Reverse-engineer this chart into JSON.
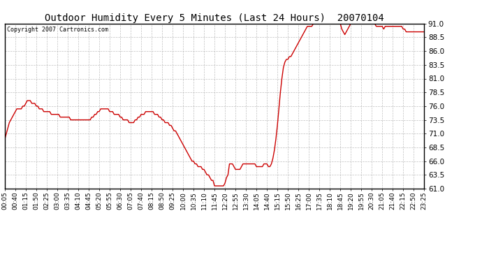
{
  "title": "Outdoor Humidity Every 5 Minutes (Last 24 Hours)  20070104",
  "copyright": "Copyright 2007 Cartronics.com",
  "ylim": [
    61.0,
    91.0
  ],
  "yticks": [
    61.0,
    63.5,
    66.0,
    68.5,
    71.0,
    73.5,
    76.0,
    78.5,
    81.0,
    83.5,
    86.0,
    88.5,
    91.0
  ],
  "line_color": "#cc0000",
  "bg_color": "#ffffff",
  "grid_color": "#b0b0b0",
  "x_labels": [
    "00:05",
    "00:40",
    "01:15",
    "01:50",
    "02:25",
    "03:00",
    "03:35",
    "04:10",
    "04:45",
    "05:20",
    "05:55",
    "06:30",
    "07:05",
    "07:40",
    "08:15",
    "08:50",
    "09:25",
    "10:00",
    "10:35",
    "11:10",
    "11:45",
    "12:20",
    "12:55",
    "13:30",
    "14:05",
    "14:40",
    "15:15",
    "15:50",
    "16:25",
    "17:00",
    "17:35",
    "18:10",
    "18:45",
    "19:20",
    "19:55",
    "20:30",
    "21:05",
    "21:40",
    "22:15",
    "22:50",
    "23:25"
  ],
  "humidity_data": [
    [
      "00:05",
      70.0
    ],
    [
      "00:10",
      71.0
    ],
    [
      "00:15",
      72.0
    ],
    [
      "00:20",
      73.0
    ],
    [
      "00:25",
      73.5
    ],
    [
      "00:30",
      74.0
    ],
    [
      "00:35",
      74.5
    ],
    [
      "00:40",
      75.0
    ],
    [
      "00:45",
      75.5
    ],
    [
      "00:50",
      75.5
    ],
    [
      "00:55",
      75.5
    ],
    [
      "01:00",
      75.5
    ],
    [
      "01:05",
      76.0
    ],
    [
      "01:10",
      76.0
    ],
    [
      "01:15",
      76.5
    ],
    [
      "01:20",
      77.0
    ],
    [
      "01:25",
      77.0
    ],
    [
      "01:30",
      77.0
    ],
    [
      "01:35",
      76.5
    ],
    [
      "01:40",
      76.5
    ],
    [
      "01:45",
      76.5
    ],
    [
      "01:50",
      76.0
    ],
    [
      "01:55",
      76.0
    ],
    [
      "02:00",
      75.5
    ],
    [
      "02:05",
      75.5
    ],
    [
      "02:10",
      75.5
    ],
    [
      "02:15",
      75.0
    ],
    [
      "02:20",
      75.0
    ],
    [
      "02:25",
      75.0
    ],
    [
      "02:30",
      75.0
    ],
    [
      "02:35",
      75.0
    ],
    [
      "02:40",
      74.5
    ],
    [
      "02:45",
      74.5
    ],
    [
      "02:50",
      74.5
    ],
    [
      "02:55",
      74.5
    ],
    [
      "03:00",
      74.5
    ],
    [
      "03:05",
      74.5
    ],
    [
      "03:10",
      74.0
    ],
    [
      "03:15",
      74.0
    ],
    [
      "03:20",
      74.0
    ],
    [
      "03:25",
      74.0
    ],
    [
      "03:30",
      74.0
    ],
    [
      "03:35",
      74.0
    ],
    [
      "03:40",
      74.0
    ],
    [
      "03:45",
      73.5
    ],
    [
      "03:50",
      73.5
    ],
    [
      "03:55",
      73.5
    ],
    [
      "04:00",
      73.5
    ],
    [
      "04:05",
      73.5
    ],
    [
      "04:10",
      73.5
    ],
    [
      "04:15",
      73.5
    ],
    [
      "04:20",
      73.5
    ],
    [
      "04:25",
      73.5
    ],
    [
      "04:30",
      73.5
    ],
    [
      "04:35",
      73.5
    ],
    [
      "04:40",
      73.5
    ],
    [
      "04:45",
      73.5
    ],
    [
      "04:50",
      73.5
    ],
    [
      "04:55",
      74.0
    ],
    [
      "05:00",
      74.0
    ],
    [
      "05:05",
      74.5
    ],
    [
      "05:10",
      74.5
    ],
    [
      "05:15",
      75.0
    ],
    [
      "05:20",
      75.0
    ],
    [
      "05:25",
      75.5
    ],
    [
      "05:30",
      75.5
    ],
    [
      "05:35",
      75.5
    ],
    [
      "05:40",
      75.5
    ],
    [
      "05:45",
      75.5
    ],
    [
      "05:50",
      75.5
    ],
    [
      "05:55",
      75.0
    ],
    [
      "06:00",
      75.0
    ],
    [
      "06:05",
      75.0
    ],
    [
      "06:10",
      74.5
    ],
    [
      "06:15",
      74.5
    ],
    [
      "06:20",
      74.5
    ],
    [
      "06:25",
      74.5
    ],
    [
      "06:30",
      74.0
    ],
    [
      "06:35",
      74.0
    ],
    [
      "06:40",
      73.5
    ],
    [
      "06:45",
      73.5
    ],
    [
      "06:50",
      73.5
    ],
    [
      "06:55",
      73.5
    ],
    [
      "07:00",
      73.0
    ],
    [
      "07:05",
      73.0
    ],
    [
      "07:10",
      73.0
    ],
    [
      "07:15",
      73.0
    ],
    [
      "07:20",
      73.5
    ],
    [
      "07:25",
      73.5
    ],
    [
      "07:30",
      74.0
    ],
    [
      "07:35",
      74.0
    ],
    [
      "07:40",
      74.5
    ],
    [
      "07:45",
      74.5
    ],
    [
      "07:50",
      74.5
    ],
    [
      "07:55",
      75.0
    ],
    [
      "08:00",
      75.0
    ],
    [
      "08:05",
      75.0
    ],
    [
      "08:10",
      75.0
    ],
    [
      "08:15",
      75.0
    ],
    [
      "08:20",
      75.0
    ],
    [
      "08:25",
      74.5
    ],
    [
      "08:30",
      74.5
    ],
    [
      "08:35",
      74.5
    ],
    [
      "08:40",
      74.0
    ],
    [
      "08:45",
      74.0
    ],
    [
      "08:50",
      73.5
    ],
    [
      "08:55",
      73.5
    ],
    [
      "09:00",
      73.0
    ],
    [
      "09:05",
      73.0
    ],
    [
      "09:10",
      73.0
    ],
    [
      "09:15",
      72.5
    ],
    [
      "09:20",
      72.5
    ],
    [
      "09:25",
      72.0
    ],
    [
      "09:30",
      71.5
    ],
    [
      "09:35",
      71.5
    ],
    [
      "09:40",
      71.0
    ],
    [
      "09:45",
      70.5
    ],
    [
      "09:50",
      70.0
    ],
    [
      "09:55",
      69.5
    ],
    [
      "10:00",
      69.0
    ],
    [
      "10:05",
      68.5
    ],
    [
      "10:10",
      68.0
    ],
    [
      "10:15",
      67.5
    ],
    [
      "10:20",
      67.0
    ],
    [
      "10:25",
      66.5
    ],
    [
      "10:30",
      66.0
    ],
    [
      "10:35",
      66.0
    ],
    [
      "10:40",
      65.5
    ],
    [
      "10:45",
      65.5
    ],
    [
      "10:50",
      65.0
    ],
    [
      "10:55",
      65.0
    ],
    [
      "11:00",
      65.0
    ],
    [
      "11:05",
      64.5
    ],
    [
      "11:10",
      64.5
    ],
    [
      "11:15",
      64.0
    ],
    [
      "11:20",
      63.5
    ],
    [
      "11:25",
      63.5
    ],
    [
      "11:30",
      63.0
    ],
    [
      "11:35",
      62.5
    ],
    [
      "11:40",
      62.5
    ],
    [
      "11:45",
      61.5
    ],
    [
      "11:50",
      61.5
    ],
    [
      "11:55",
      61.5
    ],
    [
      "12:00",
      61.5
    ],
    [
      "12:05",
      61.5
    ],
    [
      "12:10",
      61.5
    ],
    [
      "12:15",
      61.5
    ],
    [
      "12:20",
      62.0
    ],
    [
      "12:25",
      63.0
    ],
    [
      "12:30",
      63.5
    ],
    [
      "12:35",
      65.5
    ],
    [
      "12:40",
      65.5
    ],
    [
      "12:45",
      65.5
    ],
    [
      "12:50",
      65.0
    ],
    [
      "12:55",
      64.5
    ],
    [
      "13:00",
      64.5
    ],
    [
      "13:05",
      64.5
    ],
    [
      "13:10",
      64.5
    ],
    [
      "13:15",
      65.0
    ],
    [
      "13:20",
      65.5
    ],
    [
      "13:25",
      65.5
    ],
    [
      "13:30",
      65.5
    ],
    [
      "13:35",
      65.5
    ],
    [
      "13:40",
      65.5
    ],
    [
      "13:45",
      65.5
    ],
    [
      "13:50",
      65.5
    ],
    [
      "13:55",
      65.5
    ],
    [
      "14:00",
      65.5
    ],
    [
      "14:05",
      65.0
    ],
    [
      "14:10",
      65.0
    ],
    [
      "14:15",
      65.0
    ],
    [
      "14:20",
      65.0
    ],
    [
      "14:25",
      65.0
    ],
    [
      "14:30",
      65.5
    ],
    [
      "14:35",
      65.5
    ],
    [
      "14:40",
      65.5
    ],
    [
      "14:45",
      65.0
    ],
    [
      "14:50",
      65.0
    ],
    [
      "14:55",
      65.5
    ],
    [
      "15:00",
      66.5
    ],
    [
      "15:05",
      68.0
    ],
    [
      "15:10",
      70.0
    ],
    [
      "15:15",
      72.5
    ],
    [
      "15:20",
      75.5
    ],
    [
      "15:25",
      78.5
    ],
    [
      "15:30",
      81.0
    ],
    [
      "15:35",
      83.0
    ],
    [
      "15:40",
      84.0
    ],
    [
      "15:45",
      84.5
    ],
    [
      "15:50",
      84.5
    ],
    [
      "15:55",
      85.0
    ],
    [
      "16:00",
      85.0
    ],
    [
      "16:05",
      85.5
    ],
    [
      "16:10",
      86.0
    ],
    [
      "16:15",
      86.5
    ],
    [
      "16:20",
      87.0
    ],
    [
      "16:25",
      87.5
    ],
    [
      "16:30",
      88.0
    ],
    [
      "16:35",
      88.5
    ],
    [
      "16:40",
      89.0
    ],
    [
      "16:45",
      89.5
    ],
    [
      "16:50",
      90.0
    ],
    [
      "16:55",
      90.5
    ],
    [
      "17:00",
      90.5
    ],
    [
      "17:05",
      90.5
    ],
    [
      "17:10",
      90.5
    ],
    [
      "17:15",
      91.0
    ],
    [
      "17:20",
      91.0
    ],
    [
      "17:25",
      91.0
    ],
    [
      "17:30",
      91.0
    ],
    [
      "17:35",
      91.0
    ],
    [
      "17:40",
      91.0
    ],
    [
      "17:45",
      91.0
    ],
    [
      "17:50",
      91.0
    ],
    [
      "17:55",
      91.0
    ],
    [
      "18:00",
      91.0
    ],
    [
      "18:05",
      91.0
    ],
    [
      "18:10",
      91.0
    ],
    [
      "18:15",
      91.0
    ],
    [
      "18:20",
      91.0
    ],
    [
      "18:25",
      91.0
    ],
    [
      "18:30",
      91.0
    ],
    [
      "18:35",
      91.0
    ],
    [
      "18:40",
      91.0
    ],
    [
      "18:45",
      91.0
    ],
    [
      "18:50",
      90.0
    ],
    [
      "18:55",
      89.5
    ],
    [
      "19:00",
      89.0
    ],
    [
      "19:05",
      89.5
    ],
    [
      "19:10",
      90.0
    ],
    [
      "19:15",
      90.5
    ],
    [
      "19:20",
      91.0
    ],
    [
      "19:25",
      91.0
    ],
    [
      "19:30",
      91.0
    ],
    [
      "19:35",
      91.0
    ],
    [
      "19:40",
      91.0
    ],
    [
      "19:45",
      91.0
    ],
    [
      "19:50",
      91.0
    ],
    [
      "19:55",
      91.0
    ],
    [
      "20:00",
      91.0
    ],
    [
      "20:05",
      91.0
    ],
    [
      "20:10",
      91.0
    ],
    [
      "20:15",
      91.0
    ],
    [
      "20:20",
      91.0
    ],
    [
      "20:25",
      91.0
    ],
    [
      "20:30",
      91.0
    ],
    [
      "20:35",
      91.0
    ],
    [
      "20:40",
      91.0
    ],
    [
      "20:45",
      90.5
    ],
    [
      "20:50",
      90.5
    ],
    [
      "20:55",
      90.5
    ],
    [
      "21:00",
      90.5
    ],
    [
      "21:05",
      90.5
    ],
    [
      "21:10",
      90.0
    ],
    [
      "21:15",
      90.5
    ],
    [
      "21:20",
      90.5
    ],
    [
      "21:25",
      90.5
    ],
    [
      "21:30",
      90.5
    ],
    [
      "21:35",
      90.5
    ],
    [
      "21:40",
      90.5
    ],
    [
      "21:45",
      90.5
    ],
    [
      "21:50",
      90.5
    ],
    [
      "21:55",
      90.5
    ],
    [
      "22:00",
      90.5
    ],
    [
      "22:05",
      90.5
    ],
    [
      "22:10",
      90.5
    ],
    [
      "22:15",
      90.0
    ],
    [
      "22:20",
      90.0
    ],
    [
      "22:25",
      89.5
    ],
    [
      "22:30",
      89.5
    ],
    [
      "22:35",
      89.5
    ],
    [
      "22:40",
      89.5
    ],
    [
      "22:45",
      89.5
    ],
    [
      "22:50",
      89.5
    ],
    [
      "22:55",
      89.5
    ],
    [
      "23:00",
      89.5
    ],
    [
      "23:05",
      89.5
    ],
    [
      "23:10",
      89.5
    ],
    [
      "23:15",
      89.5
    ],
    [
      "23:20",
      89.5
    ],
    [
      "23:25",
      89.5
    ]
  ]
}
